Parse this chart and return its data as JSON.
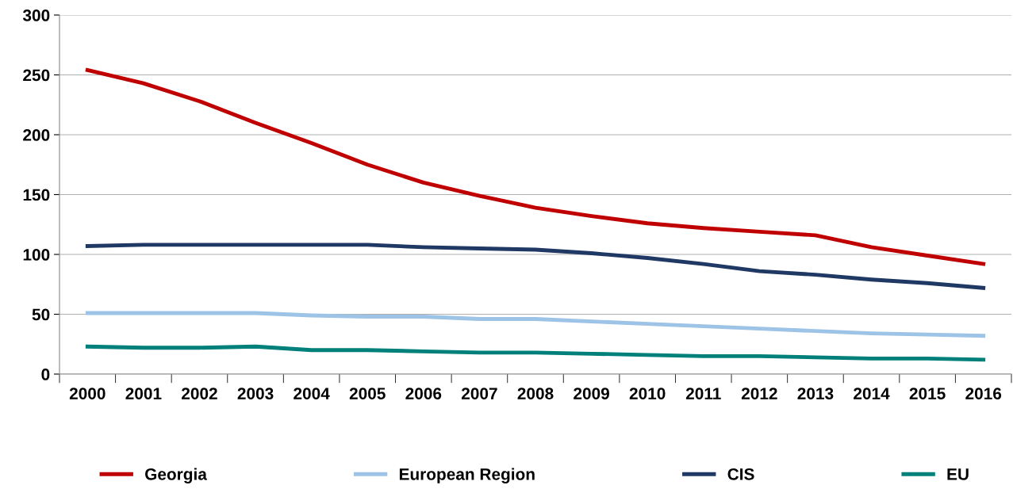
{
  "chart_data": {
    "type": "line",
    "categories": [
      "2000",
      "2001",
      "2002",
      "2003",
      "2004",
      "2005",
      "2006",
      "2007",
      "2008",
      "2009",
      "2010",
      "2011",
      "2012",
      "2013",
      "2014",
      "2015",
      "2016"
    ],
    "series": [
      {
        "name": "Georgia",
        "color": "#c00000",
        "values": [
          254,
          243,
          228,
          210,
          193,
          175,
          160,
          149,
          139,
          132,
          126,
          122,
          119,
          116,
          106,
          99,
          92
        ]
      },
      {
        "name": "European Region",
        "color": "#9dc3e6",
        "values": [
          51,
          51,
          51,
          51,
          49,
          48,
          48,
          46,
          46,
          44,
          42,
          40,
          38,
          36,
          34,
          33,
          32
        ]
      },
      {
        "name": "CIS",
        "color": "#1f3864",
        "values": [
          107,
          108,
          108,
          108,
          108,
          108,
          106,
          105,
          104,
          101,
          97,
          92,
          86,
          83,
          79,
          76,
          72
        ]
      },
      {
        "name": "EU",
        "color": "#00807a",
        "values": [
          23,
          22,
          22,
          23,
          20,
          20,
          19,
          18,
          18,
          17,
          16,
          15,
          15,
          14,
          13,
          13,
          12
        ]
      }
    ],
    "ylim": [
      0,
      300
    ],
    "yticks": [
      0,
      50,
      100,
      150,
      200,
      250,
      300
    ],
    "grid": "y",
    "legend": "bottom",
    "marker": "none",
    "line_style": "solid"
  }
}
